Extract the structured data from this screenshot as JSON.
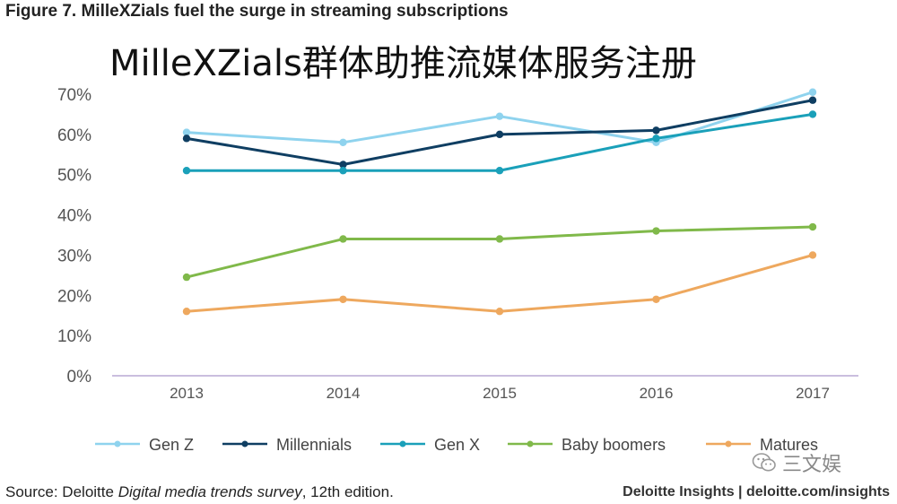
{
  "figure_title": "Figure 7. MilleXZials fuel the surge in streaming subscriptions",
  "overlay_title": "MilleXZials群体助推流媒体服务注册",
  "source": {
    "prefix": "Source: Deloitte ",
    "italic": "Digital media trends survey",
    "suffix": ", 12th edition."
  },
  "brand": "Deloitte Insights | deloitte.com/insights",
  "watermark": "三文娱",
  "chart_data": {
    "type": "line",
    "x": [
      "2013",
      "2014",
      "2015",
      "2016",
      "2017"
    ],
    "y_ticks": [
      "0%",
      "10%",
      "20%",
      "30%",
      "40%",
      "50%",
      "60%",
      "70%"
    ],
    "ylim": [
      0,
      70
    ],
    "y_unit": "%",
    "grid": false,
    "legend_position": "bottom",
    "series": [
      {
        "name": "Gen Z",
        "color": "#8fd3ee",
        "values": [
          60.5,
          58,
          64.5,
          58,
          70.5
        ]
      },
      {
        "name": "Millennials",
        "color": "#0f3e62",
        "values": [
          59,
          52.5,
          60,
          61,
          68.5
        ]
      },
      {
        "name": "Gen X",
        "color": "#1aa0b9",
        "values": [
          51,
          51,
          51,
          59,
          65
        ]
      },
      {
        "name": "Baby boomers",
        "color": "#80b94a",
        "values": [
          24.5,
          34,
          34,
          36,
          37
        ]
      },
      {
        "name": "Matures",
        "color": "#eea85e",
        "values": [
          16,
          19,
          16,
          19,
          30
        ]
      }
    ]
  }
}
